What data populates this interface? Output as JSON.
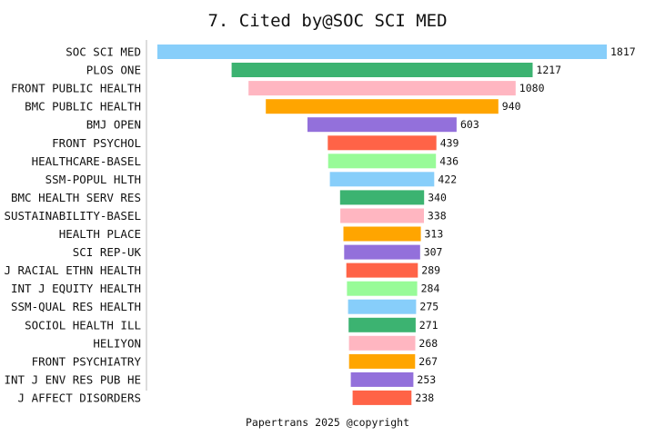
{
  "chart_data": {
    "type": "bar",
    "orientation": "horizontal",
    "title": "7. Cited by@SOC SCI MED",
    "footer": "Papertrans 2025 @copyright",
    "xlabel": "",
    "ylabel": "",
    "categories": [
      "SOC SCI MED",
      "PLOS ONE",
      "FRONT PUBLIC HEALTH",
      "BMC PUBLIC HEALTH",
      "BMJ OPEN",
      "FRONT PSYCHOL",
      "HEALTHCARE-BASEL",
      "SSM-POPUL HLTH",
      "BMC HEALTH SERV RES",
      "SUSTAINABILITY-BASEL",
      "HEALTH PLACE",
      "SCI REP-UK",
      "J RACIAL ETHN HEALTH",
      "INT J EQUITY HEALTH",
      "SSM-QUAL RES HEALTH",
      "SOCIOL HEALTH ILL",
      "HELIYON",
      "FRONT PSYCHIATRY",
      "INT J ENV RES PUB HE",
      "J AFFECT DISORDERS"
    ],
    "values": [
      1817,
      1217,
      1080,
      940,
      603,
      439,
      436,
      422,
      340,
      338,
      313,
      307,
      289,
      284,
      275,
      271,
      268,
      267,
      253,
      238
    ],
    "value_labels": [
      "1817",
      "1217",
      "1080",
      "940",
      "603",
      "439",
      "436",
      "422",
      "340",
      "338",
      "313",
      "307",
      "289",
      "284",
      "275",
      "271",
      "268",
      "267",
      "253",
      "238"
    ],
    "colors": [
      "#87CEFA",
      "#3CB371",
      "#FFB6C1",
      "#FFA500",
      "#9370DB",
      "#FF6347",
      "#98FB98"
    ],
    "grid": false,
    "legend": "none",
    "bar_alignment": "centered"
  }
}
